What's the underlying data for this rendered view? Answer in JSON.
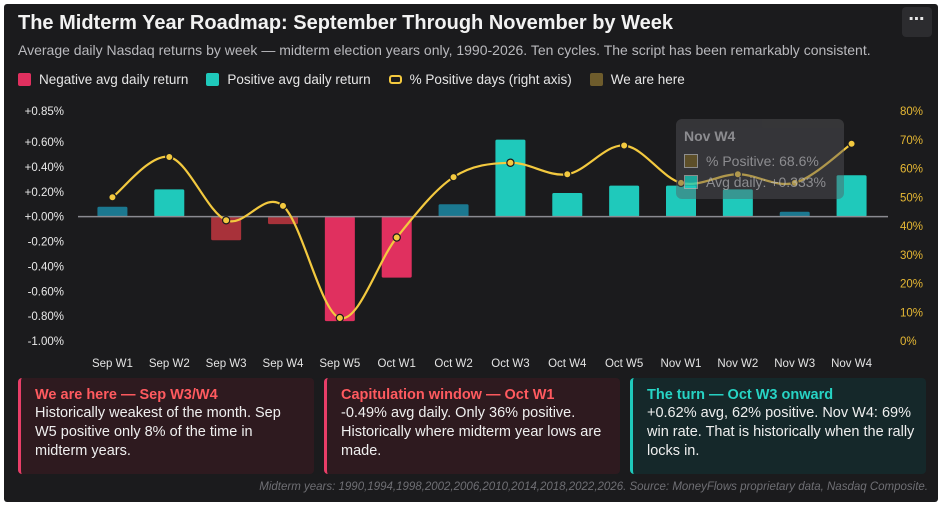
{
  "header": {
    "title": "The Midterm Year Roadmap: September Through November by Week",
    "subtitle": "Average daily Nasdaq returns by week — midterm election years only, 1990-2026. Ten cycles. The script has been remarkably consistent.",
    "more_label": "⋯"
  },
  "legend": [
    {
      "label": "Negative avg daily return",
      "color": "#e0305f",
      "kind": "box"
    },
    {
      "label": "Positive avg daily return",
      "color": "#1fc9bb",
      "kind": "box"
    },
    {
      "label": "% Positive days (right axis)",
      "color": "#f3c93f",
      "kind": "line"
    },
    {
      "label": "We are here",
      "color": "#6e5c2c",
      "kind": "box"
    }
  ],
  "colors": {
    "negative": "#e0305f",
    "positive": "#1fc9bb",
    "line": "#f3c93f",
    "we_are_here": "#6e5c2c",
    "past_positive": "#1b7890",
    "past_negative": "#a8323a"
  },
  "chart_data": {
    "type": "bar",
    "categories": [
      "Sep W1",
      "Sep W2",
      "Sep W3",
      "Sep W4",
      "Sep W5",
      "Oct W1",
      "Oct W2",
      "Oct W3",
      "Oct W4",
      "Oct W5",
      "Nov W1",
      "Nov W2",
      "Nov W3",
      "Nov W4"
    ],
    "series": [
      {
        "values": [
          0.08,
          0.22,
          -0.19,
          -0.06,
          -0.84,
          -0.49,
          0.1,
          0.62,
          0.19,
          0.25,
          0.25,
          0.22,
          0.04,
          0.333
        ]
      },
      {
        "values": [
          50,
          64,
          42,
          47,
          8,
          36,
          57,
          62,
          58,
          68,
          55,
          58,
          55,
          68.6
        ]
      }
    ],
    "bar_style": [
      "past",
      "normal",
      "past",
      "past",
      "normal",
      "normal",
      "past",
      "normal",
      "normal",
      "normal",
      "normal",
      "normal",
      "past",
      "normal"
    ],
    "y_left": {
      "min": -1.0,
      "max": 0.85,
      "ticks": [
        "+0.85%",
        "+0.60%",
        "+0.40%",
        "+0.20%",
        "+0.00%",
        "-0.20%",
        "-0.40%",
        "-0.60%",
        "-0.80%",
        "-1.00%"
      ],
      "tick_values": [
        0.85,
        0.6,
        0.4,
        0.2,
        0,
        -0.2,
        -0.4,
        -0.6,
        -0.8,
        -1.0
      ]
    },
    "y_right": {
      "min": 0,
      "max": 80,
      "ticks": [
        "80%",
        "70%",
        "60%",
        "50%",
        "40%",
        "30%",
        "20%",
        "10%",
        "0%"
      ],
      "tick_values": [
        80,
        70,
        60,
        50,
        40,
        30,
        20,
        10,
        0
      ]
    },
    "grid": false,
    "legend_position": "top-left"
  },
  "tooltip": {
    "title": "Nov W4",
    "row1": "% Positive: 68.6%",
    "row2": "Avg daily: +0.333%"
  },
  "panels": [
    {
      "title": "We are here — Sep W3/W4",
      "body": "Historically weakest of the month. Sep W5 positive only 8% of the time in midterm years."
    },
    {
      "title": "Capitulation window — Oct W1",
      "body": "-0.49% avg daily. Only 36% positive. Historically where midterm year lows are made."
    },
    {
      "title": "The turn — Oct W3 onward",
      "body": "+0.62% avg, 62% positive. Nov W4: 69% win rate. That is historically when the rally locks in."
    }
  ],
  "footnote": "Midterm years: 1990,1994,1998,2002,2006,2010,2014,2018,2022,2026. Source: MoneyFlows proprietary data, Nasdaq Composite."
}
